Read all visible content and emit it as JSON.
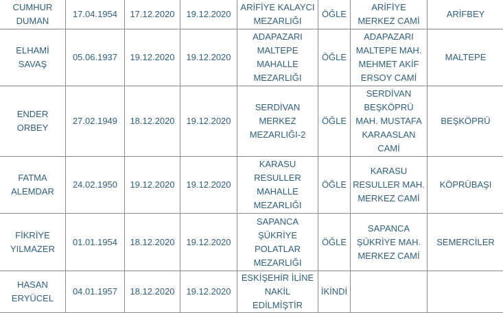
{
  "table": {
    "rows": [
      {
        "name": "CUMHUR DUMAN",
        "birth": "17.04.1954",
        "death": "17.12.2020",
        "burial": "19.12.2020",
        "cemetery": "ARİFİYE KALAYCI MEZARLIĞI",
        "prayer_time": "ÖĞLE",
        "mosque": "ARİFİYE MERKEZ CAMİ",
        "neighborhood": "ARİFBEY"
      },
      {
        "name": "ELHAMİ SAVAŞ",
        "birth": "05.06.1937",
        "death": "19.12.2020",
        "burial": "19.12.2020",
        "cemetery": "ADAPAZARI MALTEPE MAHALLE MEZARLIĞI",
        "prayer_time": "ÖĞLE",
        "mosque": "ADAPAZARI MALTEPE MAH. MEHMET AKİF ERSOY CAMİ",
        "neighborhood": "MALTEPE"
      },
      {
        "name": "ENDER ORBEY",
        "birth": "27.02.1949",
        "death": "18.12.2020",
        "burial": "19.12.2020",
        "cemetery": "SERDİVAN MERKEZ MEZARLIĞI-2",
        "prayer_time": "ÖĞLE",
        "mosque": "SERDİVAN BEŞKÖPRÜ MAH. MUSTAFA KARAASLAN CAMİ",
        "neighborhood": "BEŞKÖPRÜ"
      },
      {
        "name": "FATMA ALEMDAR",
        "birth": "24.02.1950",
        "death": "19.12.2020",
        "burial": "19.12.2020",
        "cemetery": "KARASU RESULLER MAHALLE MEZARLIĞI",
        "prayer_time": "ÖĞLE",
        "mosque": "KARASU RESULLER MAH. MERKEZ CAMİ",
        "neighborhood": "KÖPRÜBAŞI"
      },
      {
        "name": "FİKRİYE YILMAZER",
        "birth": "01.01.1954",
        "death": "18.12.2020",
        "burial": "19.12.2020",
        "cemetery": "SAPANCA ŞÜKRİYE POLATLAR MEZARLIĞI",
        "prayer_time": "ÖĞLE",
        "mosque": "SAPANCA ŞÜKRİYE MAH. MERKEZ CAMİ",
        "neighborhood": "SEMERCİLER"
      },
      {
        "name": "HASAN ERYÜCEL",
        "birth": "04.01.1957",
        "death": "18.12.2020",
        "burial": "19.12.2020",
        "cemetery": "ESKİŞEHİR İLİNE NAKİL EDİLMİŞTİR",
        "prayer_time": "İKİNDİ",
        "mosque": "",
        "neighborhood": ""
      }
    ]
  }
}
